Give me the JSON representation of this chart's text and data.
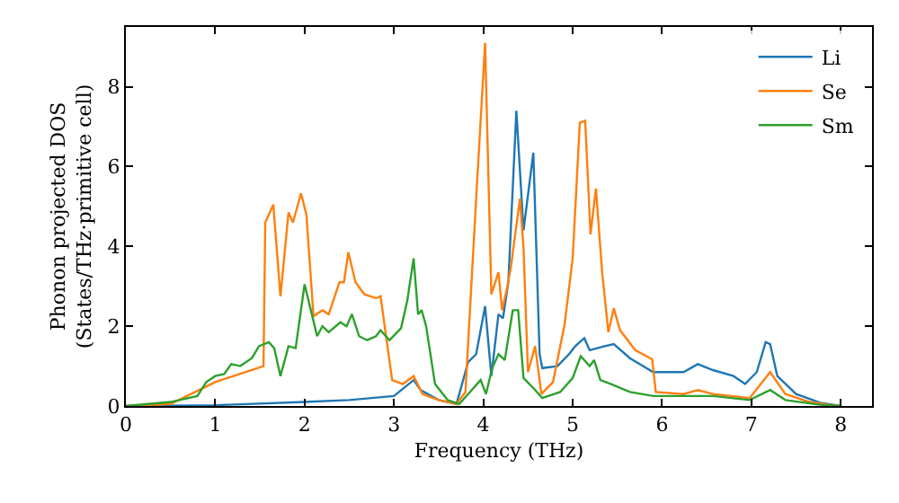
{
  "chart_data": {
    "type": "line",
    "xlabel": "Frequency (THz)",
    "ylabel": "Phonon projected DOS\n(States/THz·primitive cell)",
    "xlim": [
      0,
      8.35
    ],
    "ylim": [
      0,
      9.5
    ],
    "xticks": [
      0,
      1,
      2,
      3,
      4,
      5,
      6,
      7,
      8
    ],
    "yticks": [
      0,
      2,
      4,
      6,
      8
    ],
    "grid": false,
    "legend": "top right",
    "marker": "none",
    "line_style": "solid",
    "series": [
      {
        "name": "Li",
        "color": "#1f77b4",
        "x": [
          0,
          1.0,
          2.0,
          2.5,
          3.0,
          3.22,
          3.3,
          3.5,
          3.7,
          3.83,
          3.92,
          4.02,
          4.09,
          4.17,
          4.22,
          4.28,
          4.37,
          4.45,
          4.56,
          4.63,
          4.66,
          4.83,
          4.96,
          5.03,
          5.13,
          5.19,
          5.36,
          5.46,
          5.64,
          5.9,
          6.24,
          6.4,
          6.57,
          6.8,
          6.93,
          7.06,
          7.16,
          7.21,
          7.29,
          7.5,
          7.77,
          8.0
        ],
        "values": [
          0,
          0.02,
          0.1,
          0.15,
          0.25,
          0.65,
          0.4,
          0.15,
          0.05,
          1.1,
          1.3,
          2.5,
          0.75,
          2.3,
          2.2,
          3.1,
          7.4,
          4.4,
          6.35,
          1.3,
          0.95,
          1.0,
          1.3,
          1.5,
          1.7,
          1.4,
          1.5,
          1.55,
          1.2,
          0.85,
          0.85,
          1.05,
          0.9,
          0.75,
          0.55,
          0.85,
          1.6,
          1.55,
          0.75,
          0.3,
          0.08,
          0
        ]
      },
      {
        "name": "Se",
        "color": "#ff7f0e",
        "x": [
          0,
          0.5,
          1.0,
          1.54,
          1.56,
          1.65,
          1.73,
          1.82,
          1.87,
          1.96,
          2.02,
          2.1,
          2.2,
          2.27,
          2.39,
          2.44,
          2.49,
          2.57,
          2.67,
          2.8,
          2.85,
          2.98,
          3.1,
          3.22,
          3.32,
          3.5,
          3.7,
          3.8,
          3.92,
          4.02,
          4.09,
          4.17,
          4.21,
          4.27,
          4.31,
          4.41,
          4.45,
          4.5,
          4.58,
          4.65,
          4.78,
          4.91,
          5.0,
          5.08,
          5.14,
          5.2,
          5.26,
          5.33,
          5.4,
          5.46,
          5.53,
          5.7,
          5.89,
          5.93,
          6.24,
          6.4,
          6.57,
          6.98,
          7.21,
          7.38,
          7.65,
          7.9,
          8.0
        ],
        "values": [
          0,
          0.05,
          0.6,
          1.0,
          4.6,
          5.05,
          2.75,
          4.85,
          4.6,
          5.33,
          4.8,
          2.25,
          2.4,
          2.3,
          3.1,
          3.1,
          3.85,
          3.1,
          2.8,
          2.7,
          2.75,
          0.65,
          0.55,
          0.75,
          0.3,
          0.15,
          0.05,
          0.35,
          5.2,
          9.1,
          2.8,
          3.35,
          2.4,
          3.0,
          3.5,
          5.2,
          3.95,
          0.85,
          1.5,
          0.3,
          0.6,
          2.05,
          3.7,
          7.1,
          7.15,
          4.3,
          5.45,
          3.35,
          1.85,
          2.45,
          1.9,
          1.4,
          1.17,
          0.35,
          0.3,
          0.4,
          0.3,
          0.2,
          0.85,
          0.3,
          0.1,
          0.02,
          0
        ]
      },
      {
        "name": "Sm",
        "color": "#2ca02c",
        "x": [
          0,
          0.5,
          0.8,
          0.9,
          1.0,
          1.1,
          1.18,
          1.28,
          1.41,
          1.49,
          1.6,
          1.66,
          1.73,
          1.82,
          1.9,
          2.0,
          2.07,
          2.14,
          2.2,
          2.27,
          2.4,
          2.47,
          2.53,
          2.61,
          2.7,
          2.8,
          2.85,
          2.95,
          3.08,
          3.15,
          3.22,
          3.27,
          3.31,
          3.36,
          3.46,
          3.6,
          3.73,
          3.83,
          3.97,
          4.03,
          4.1,
          4.17,
          4.24,
          4.33,
          4.39,
          4.45,
          4.56,
          4.66,
          4.86,
          5.0,
          5.09,
          5.19,
          5.24,
          5.31,
          5.43,
          5.64,
          5.9,
          6.57,
          6.98,
          7.21,
          7.38,
          7.77,
          8.0
        ],
        "values": [
          0,
          0.1,
          0.25,
          0.6,
          0.75,
          0.8,
          1.05,
          1.0,
          1.2,
          1.5,
          1.6,
          1.45,
          0.75,
          1.5,
          1.45,
          3.05,
          2.4,
          1.75,
          2.0,
          1.85,
          2.1,
          2.0,
          2.3,
          1.75,
          1.65,
          1.75,
          1.9,
          1.65,
          1.95,
          2.65,
          3.7,
          2.3,
          2.4,
          2.0,
          0.55,
          0.15,
          0.05,
          0.3,
          0.65,
          0.3,
          0.95,
          1.3,
          1.15,
          2.4,
          2.4,
          0.7,
          0.45,
          0.2,
          0.35,
          0.7,
          1.25,
          1.0,
          1.15,
          0.65,
          0.55,
          0.35,
          0.25,
          0.25,
          0.15,
          0.4,
          0.15,
          0.03,
          0
        ]
      }
    ]
  }
}
